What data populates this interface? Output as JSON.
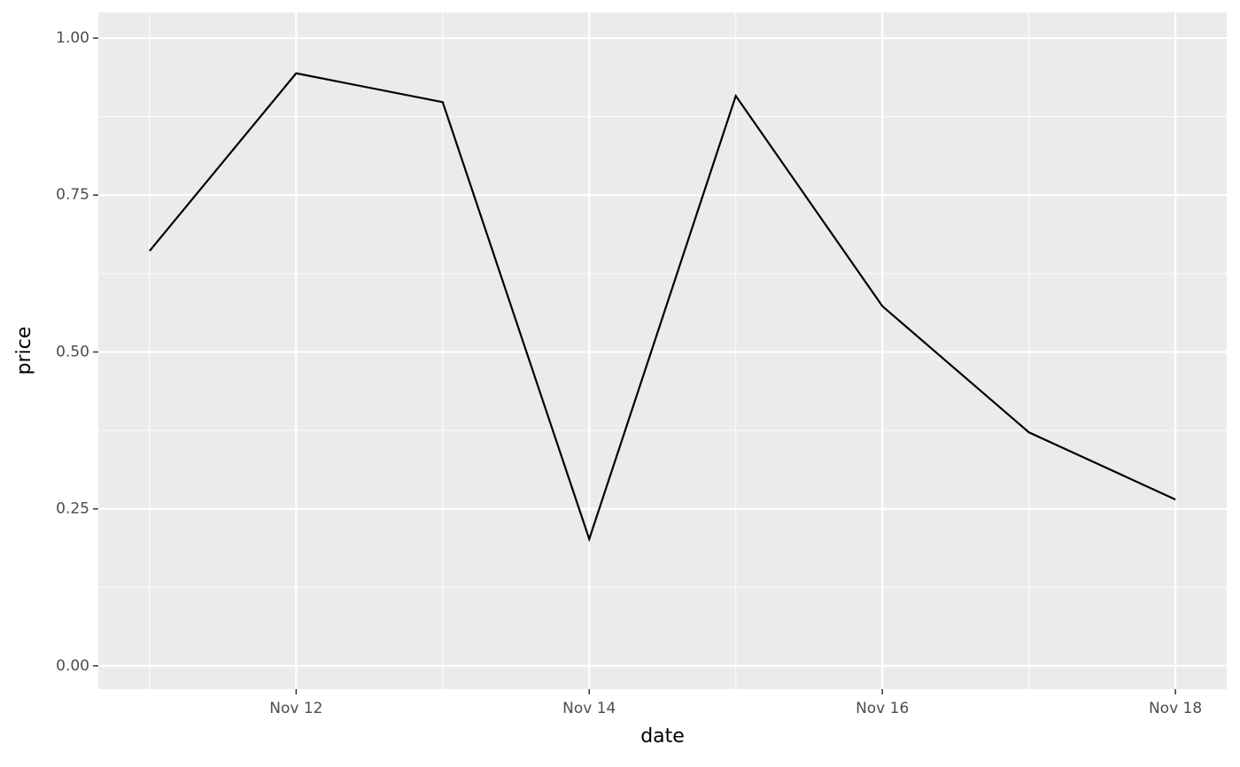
{
  "chart_data": {
    "type": "line",
    "x_label": "date",
    "y_label": "price",
    "x": [
      11,
      12,
      13,
      14,
      15,
      16,
      17,
      18
    ],
    "series": [
      {
        "color": "#000000",
        "values": [
          0.661,
          0.944,
          0.898,
          0.202,
          0.908,
          0.573,
          0.372,
          0.265
        ]
      }
    ],
    "xlim": [
      10.65,
      18.35
    ],
    "xticks": [
      {
        "value": 12,
        "label": "Nov 12"
      },
      {
        "value": 14,
        "label": "Nov 14"
      },
      {
        "value": 16,
        "label": "Nov 16"
      },
      {
        "value": 18,
        "label": "Nov 18"
      }
    ],
    "x_minor_grid": [
      11,
      13,
      15,
      17
    ],
    "ylim": [
      -0.037,
      1.041
    ],
    "yticks": [
      {
        "value": 0,
        "label": "0.00"
      },
      {
        "value": 0.25,
        "label": "0.25"
      },
      {
        "value": 0.5,
        "label": "0.50"
      },
      {
        "value": 0.75,
        "label": "0.75"
      },
      {
        "value": 1,
        "label": "1.00"
      }
    ],
    "y_minor_grid": [
      0.125,
      0.375,
      0.625,
      0.875
    ],
    "grid": true,
    "panel_color": "#ebebeb"
  }
}
